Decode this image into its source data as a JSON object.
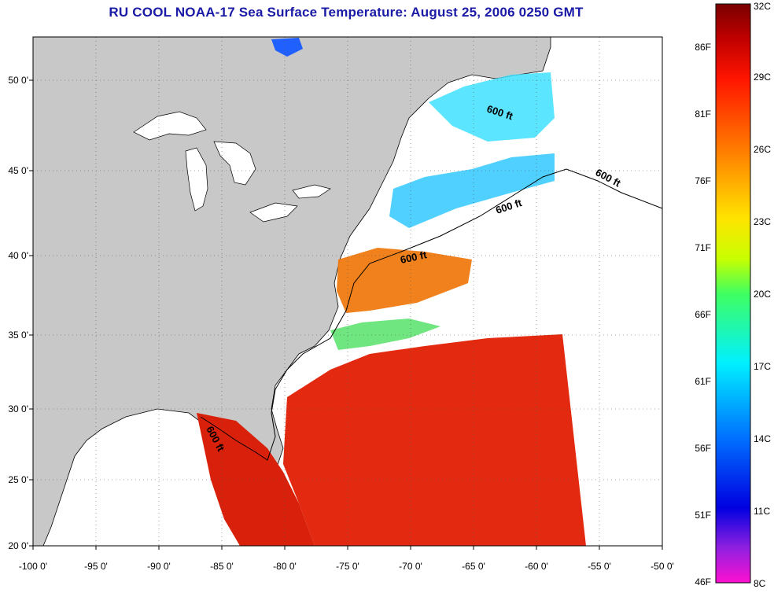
{
  "title": "RU COOL  NOAA-17  Sea Surface Temperature:  August 25, 2006 0250 GMT",
  "map": {
    "lon_ticks": [
      "-100 0'",
      "-95 0'",
      "-90 0'",
      "-85 0'",
      "-80 0'",
      "-75 0'",
      "-70 0'",
      "-65 0'",
      "-60 0'",
      "-55 0'",
      "-50 0'"
    ],
    "lat_ticks": [
      "50 0'",
      "45 0'",
      "40 0'",
      "35 0'",
      "30 0'",
      "25 0'",
      "20 0'"
    ],
    "lon_range": [
      -100,
      -50
    ],
    "lat_range": [
      20,
      52.5
    ],
    "contour_labels": [
      "600 ft",
      "600 ft",
      "600 ft",
      "600 ft",
      "600 ft"
    ],
    "colors": {
      "land": "#c8c8c8",
      "no_data": "#ffffff",
      "title": "#1a1aa6"
    }
  },
  "colorbar": {
    "celsius_labels": [
      "32C",
      "29C",
      "26C",
      "23C",
      "20C",
      "17C",
      "14C",
      "11C",
      "8C"
    ],
    "fahrenheit_labels": [
      "86F",
      "81F",
      "76F",
      "71F",
      "66F",
      "61F",
      "56F",
      "51F",
      "46F"
    ],
    "celsius_range": [
      8,
      32
    ]
  }
}
